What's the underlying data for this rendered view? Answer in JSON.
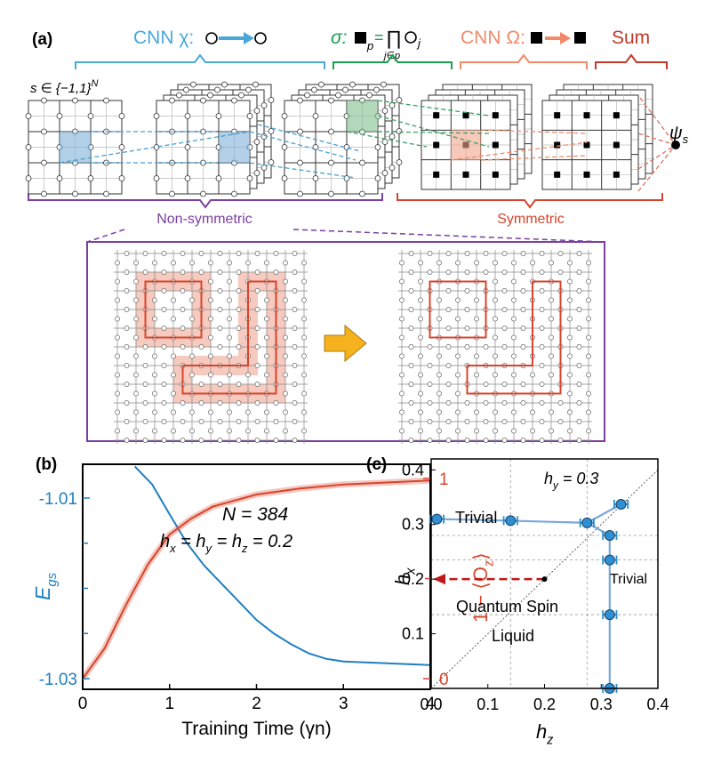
{
  "panel_a": {
    "label": "(a)",
    "cnn_chi": "CNN χ:",
    "sigma": "σ:",
    "formula": [
      "p",
      "=",
      "∏",
      "j∈p",
      "j"
    ],
    "cnn_omega": "CNN Ω:",
    "sum": "Sum",
    "input": "s ∈ {−1,1}",
    "input_sup": "N",
    "output": "ψ",
    "output_sub": "s",
    "non_symmetric": "Non-symmetric",
    "symmetric": "Symmetric"
  },
  "chart_data": [
    {
      "type": "line",
      "panel_label": "(b)",
      "xlabel": "Training Time (γn)",
      "ylabel": [
        "E",
        "gs"
      ],
      "y2label": [
        "1 − ⟨O",
        "z",
        "⟩"
      ],
      "annotation_1": "N = 384",
      "annotation_2": [
        "h",
        "x",
        " = h",
        "y",
        " = h",
        "z",
        " = 0.2"
      ],
      "xlim": [
        0,
        4
      ],
      "xticks": [
        0,
        1,
        2,
        3,
        4
      ],
      "ylim": [
        -1.03118,
        -1.00626
      ],
      "yticks": [
        -1.03,
        -1.01
      ],
      "yminor": [
        -1.025,
        -1.02,
        -1.015
      ],
      "y2lim": [
        -0.053,
        1.071
      ],
      "y2ticks": [
        0,
        1
      ],
      "y2minor": [
        0.5
      ],
      "series": [
        {
          "color": "#1f7fc0",
          "axis": "y",
          "x": [
            0.6,
            0.8,
            1.0,
            1.2,
            1.4,
            1.6,
            1.8,
            2.0,
            2.2,
            2.4,
            2.6,
            2.8,
            3.0,
            3.5,
            4.0
          ],
          "values": [
            -1.0065,
            -1.0085,
            -1.0118,
            -1.015,
            -1.0175,
            -1.0195,
            -1.0215,
            -1.0235,
            -1.025,
            -1.0262,
            -1.0272,
            -1.0278,
            -1.0281,
            -1.0283,
            -1.0285
          ]
        },
        {
          "color": "#d9442c",
          "axis": "y2",
          "band": true,
          "x": [
            0,
            0.25,
            0.5,
            0.75,
            1.0,
            1.25,
            1.5,
            2.0,
            2.5,
            3.0,
            3.5,
            4.0
          ],
          "values": [
            0,
            0.15,
            0.37,
            0.57,
            0.72,
            0.8,
            0.86,
            0.92,
            0.95,
            0.97,
            0.98,
            0.99
          ]
        }
      ]
    },
    {
      "type": "scatter",
      "panel_label": "(c)",
      "xlabel": [
        "h",
        "z"
      ],
      "ylabel": [
        "h",
        "x"
      ],
      "annotations": [
        "Trivial",
        "Trivial",
        "Quantum Spin",
        "Liquid"
      ],
      "annotation_hy": [
        "h",
        "y",
        " = 0.3"
      ],
      "xlim": [
        0,
        0.4
      ],
      "xticks": [
        {
          "value": 0,
          "label": "0.0"
        },
        0.1,
        0.2,
        0.3,
        0.4
      ],
      "ylim": [
        0,
        0.42
      ],
      "yticks": [
        0.1,
        0.2,
        0.3,
        0.4
      ],
      "diagonal": true,
      "color": "#2f8fd0",
      "x": [
        0.01,
        0.14,
        0.275,
        0.335,
        0.315,
        0.315,
        0.315,
        0.315
      ],
      "values": [
        0.31,
        0.307,
        0.303,
        0.337,
        0.28,
        0.235,
        0.135,
        0.0
      ],
      "xerr": [
        0.012,
        0.012,
        0.012,
        0.012,
        0.012,
        0.012,
        0.012,
        0.012
      ],
      "marker": {
        "x": 0.2,
        "y": 0.2
      }
    }
  ]
}
